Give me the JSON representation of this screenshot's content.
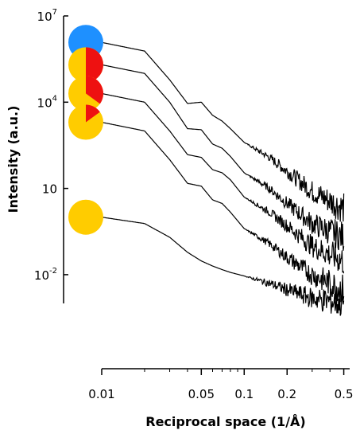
{
  "chart_data": {
    "type": "line",
    "xlabel": "Reciprocal space (1/Å)",
    "ylabel": "Intensity (a.u.)",
    "x_scale": "log",
    "y_scale": "log",
    "xlim": [
      0.01,
      0.55
    ],
    "ylim": [
      0.001,
      10000000
    ],
    "x_ticks": [
      {
        "value": 0.01,
        "label": "0.01"
      },
      {
        "value": 0.05,
        "label": "0.05"
      },
      {
        "value": 0.1,
        "label": "0.1"
      },
      {
        "value": 0.2,
        "label": "0.2"
      },
      {
        "value": 0.5,
        "label": "0.5"
      }
    ],
    "y_ticks": [
      {
        "value": 10000000,
        "base": "10",
        "exp": "7"
      },
      {
        "value": 10000,
        "base": "10",
        "exp": "4"
      },
      {
        "value": 10,
        "base": "10",
        "exp": ""
      },
      {
        "value": 0.01,
        "base": "10",
        "exp": "-2"
      }
    ],
    "grid": false,
    "legend": "pie markers at left of each curve",
    "colors": {
      "blue": "#1e90ff",
      "yellow": "#ffcc00",
      "red": "#ee1111",
      "line": "#000000"
    },
    "series": [
      {
        "pie_red_fraction": 0.0,
        "pie_base_color": "#1e90ff",
        "x": [
          0.01,
          0.02,
          0.03,
          0.04,
          0.05,
          0.06,
          0.07,
          0.08,
          0.1,
          0.15,
          0.2,
          0.3,
          0.5
        ],
        "y": [
          1200000,
          600000,
          60000,
          9000,
          10000,
          3500,
          2200,
          1200,
          400,
          120,
          40,
          8,
          2
        ]
      },
      {
        "pie_red_fraction": 0.5,
        "pie_base_color": "#ffcc00",
        "x": [
          0.01,
          0.02,
          0.03,
          0.04,
          0.05,
          0.06,
          0.07,
          0.08,
          0.1,
          0.15,
          0.2,
          0.3,
          0.5
        ],
        "y": [
          200000,
          100000,
          10000,
          1200,
          1100,
          350,
          250,
          130,
          35,
          10,
          3,
          0.6,
          0.2
        ]
      },
      {
        "pie_red_fraction": 0.35,
        "pie_base_color": "#ffcc00",
        "x": [
          0.01,
          0.02,
          0.03,
          0.04,
          0.05,
          0.06,
          0.07,
          0.08,
          0.1,
          0.15,
          0.2,
          0.3,
          0.5
        ],
        "y": [
          20000,
          10000,
          1000,
          150,
          120,
          45,
          35,
          20,
          5,
          1.5,
          0.5,
          0.1,
          0.03
        ]
      },
      {
        "pie_red_fraction": 0.15,
        "pie_base_color": "#ffcc00",
        "x": [
          0.01,
          0.02,
          0.03,
          0.04,
          0.05,
          0.06,
          0.07,
          0.08,
          0.1,
          0.15,
          0.2,
          0.3,
          0.5
        ],
        "y": [
          2000,
          1000,
          100,
          15,
          12,
          4,
          3,
          1.5,
          0.4,
          0.12,
          0.04,
          0.01,
          0.003
        ]
      },
      {
        "pie_red_fraction": 0.0,
        "pie_base_color": "#ffcc00",
        "x": [
          0.01,
          0.02,
          0.03,
          0.04,
          0.05,
          0.06,
          0.07,
          0.08,
          0.1,
          0.15,
          0.2,
          0.3,
          0.5
        ],
        "y": [
          1,
          0.6,
          0.2,
          0.06,
          0.03,
          0.02,
          0.015,
          0.012,
          0.009,
          0.005,
          0.003,
          0.0015,
          0.001
        ]
      }
    ]
  }
}
